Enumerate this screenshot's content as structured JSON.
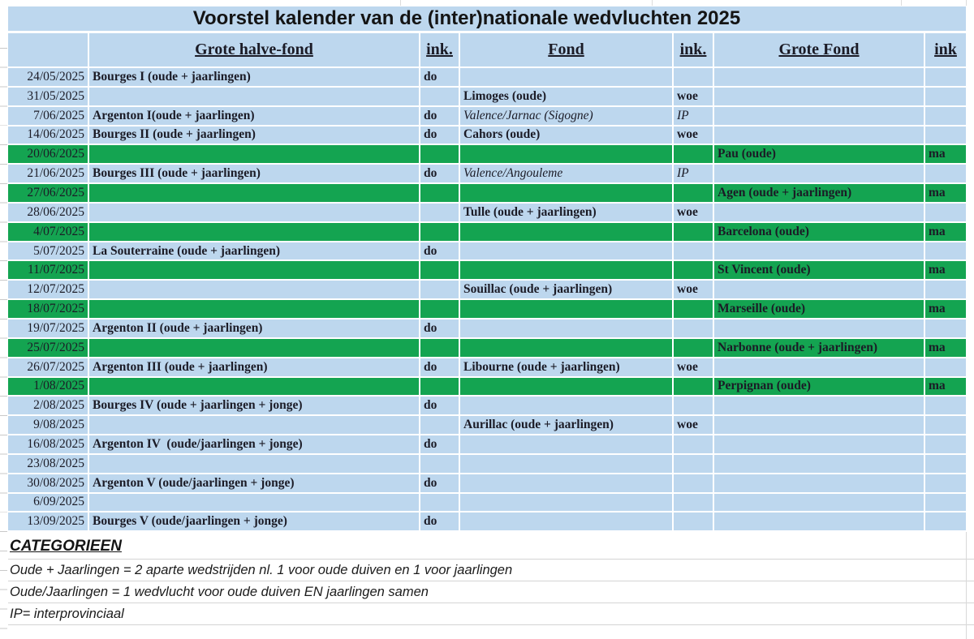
{
  "title": "Voorstel kalender van de (inter)nationale wedvluchten 2025",
  "calendar": {
    "headers": {
      "date": "",
      "grote_halve_fond": "Grote halve-fond",
      "ink1": "ink.",
      "fond": "Fond",
      "ink2": "ink.",
      "grote_fond": "Grote Fond",
      "ink3": "ink"
    },
    "rows": [
      {
        "date": "24/05/2025",
        "ghf": "Bourges I (oude + jaarlingen)",
        "ghf_ink": "do"
      },
      {
        "date": "31/05/2025",
        "fond": "Limoges (oude)",
        "fond_ink": "woe"
      },
      {
        "date": "7/06/2025",
        "ghf": "Argenton I(oude + jaarlingen)",
        "ghf_ink": "do",
        "fond": "Valence/Jarnac (Sigogne)",
        "fond_ink": "IP",
        "italic": true
      },
      {
        "date": "14/06/2025",
        "ghf": "Bourges II (oude + jaarlingen)",
        "ghf_ink": "do",
        "fond": "Cahors (oude)",
        "fond_ink": "woe"
      },
      {
        "date": "20/06/2025",
        "gf": "Pau (oude)",
        "gf_ink": "ma",
        "green": true
      },
      {
        "date": "21/06/2025",
        "ghf": "Bourges III (oude + jaarlingen)",
        "ghf_ink": "do",
        "fond": "Valence/Angouleme",
        "fond_ink": "IP",
        "italic": true
      },
      {
        "date": "27/06/2025",
        "gf": "Agen (oude + jaarlingen)",
        "gf_ink": "ma",
        "green": true
      },
      {
        "date": "28/06/2025",
        "fond": "Tulle (oude + jaarlingen)",
        "fond_ink": "woe"
      },
      {
        "date": "4/07/2025",
        "gf": "Barcelona (oude)",
        "gf_ink": "ma",
        "green": true
      },
      {
        "date": "5/07/2025",
        "ghf": "La Souterraine (oude + jaarlingen)",
        "ghf_ink": "do"
      },
      {
        "date": "11/07/2025",
        "gf": "St Vincent (oude)",
        "gf_ink": "ma",
        "green": true
      },
      {
        "date": "12/07/2025",
        "fond": "Souillac (oude + jaarlingen)",
        "fond_ink": "woe"
      },
      {
        "date": "18/07/2025",
        "gf": "Marseille (oude)",
        "gf_ink": "ma",
        "green": true
      },
      {
        "date": "19/07/2025",
        "ghf": "Argenton II (oude + jaarlingen)",
        "ghf_ink": "do"
      },
      {
        "date": "25/07/2025",
        "gf": "Narbonne (oude + jaarlingen)",
        "gf_ink": "ma",
        "green": true
      },
      {
        "date": "26/07/2025",
        "ghf": "Argenton III (oude + jaarlingen)",
        "ghf_ink": "do",
        "fond": "Libourne (oude + jaarlingen)",
        "fond_ink": "woe"
      },
      {
        "date": "1/08/2025",
        "gf": "Perpignan (oude)",
        "gf_ink": "ma",
        "green": true
      },
      {
        "date": "2/08/2025",
        "ghf": "Bourges IV (oude + jaarlingen + jonge)",
        "ghf_ink": "do"
      },
      {
        "date": "9/08/2025",
        "fond": "Aurillac (oude + jaarlingen)",
        "fond_ink": "woe"
      },
      {
        "date": "16/08/2025",
        "ghf": "Argenton IV  (oude/jaarlingen + jonge)",
        "ghf_ink": "do"
      },
      {
        "date": "23/08/2025"
      },
      {
        "date": "30/08/2025",
        "ghf": "Argenton V (oude/jaarlingen + jonge)",
        "ghf_ink": "do"
      },
      {
        "date": "6/09/2025"
      },
      {
        "date": "13/09/2025",
        "ghf": "Bourges V (oude/jaarlingen + jonge)",
        "ghf_ink": "do"
      }
    ]
  },
  "categories": {
    "heading": "CATEGORIEEN",
    "lines": [
      "Oude + Jaarlingen = 2 aparte wedstrijden nl. 1 voor oude duiven en 1 voor jaarlingen",
      "Oude/Jaarlingen = 1 wedvlucht voor oude duiven EN jaarlingen samen",
      "IP= interprovinciaal"
    ]
  },
  "colors": {
    "cell_blue": "#bdd7ee",
    "cell_green": "#14a451",
    "gridline": "#d4d4d4",
    "text": "#1b1b26"
  }
}
